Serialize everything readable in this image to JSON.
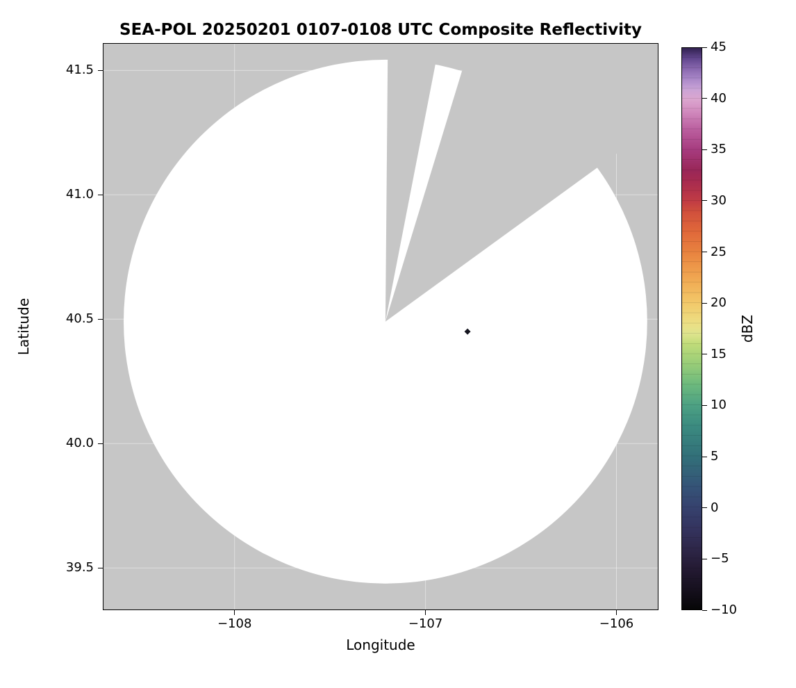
{
  "chart_data": {
    "type": "heatmap",
    "subtype": "radar-composite-reflectivity-map",
    "title": "SEA-POL 20250201 0107-0108 UTC Composite Reflectivity",
    "xlabel": "Longitude",
    "ylabel": "Latitude",
    "xlim": [
      -108.69,
      -105.78
    ],
    "ylim": [
      39.33,
      41.61
    ],
    "x_ticks": [
      {
        "value": -108,
        "label": "−108"
      },
      {
        "value": -107,
        "label": "−107"
      },
      {
        "value": -106,
        "label": "−106"
      }
    ],
    "y_ticks": [
      {
        "value": 39.5,
        "label": "39.5"
      },
      {
        "value": 40.0,
        "label": "40.0"
      },
      {
        "value": 40.5,
        "label": "40.5"
      },
      {
        "value": 41.0,
        "label": "41.0"
      },
      {
        "value": 41.5,
        "label": "41.5"
      }
    ],
    "grid": {
      "visible": true,
      "color": "#ffffff",
      "opacity": 0.45
    },
    "nodata_color": "#c6c6c6",
    "coverage_color": "#ffffff",
    "radar_coverage": {
      "center_lon": -107.21,
      "center_lat": 40.49,
      "radius_deg_lat": 1.053,
      "missing_sectors_azimuth_deg": [
        {
          "start": 0.5,
          "end": 11
        },
        {
          "start": 17,
          "end": 54
        }
      ]
    },
    "echoes": [
      {
        "lon": -106.78,
        "lat": 40.45,
        "shape": "diamond",
        "color": "#15151f"
      }
    ],
    "colorbar": {
      "label": "dBZ",
      "vmin": -10,
      "vmax": 45,
      "ticks": [
        {
          "value": 45,
          "label": "45"
        },
        {
          "value": 40,
          "label": "40"
        },
        {
          "value": 35,
          "label": "35"
        },
        {
          "value": 30,
          "label": "30"
        },
        {
          "value": 25,
          "label": "25"
        },
        {
          "value": 20,
          "label": "20"
        },
        {
          "value": 15,
          "label": "15"
        },
        {
          "value": 10,
          "label": "10"
        },
        {
          "value": 5,
          "label": "5"
        },
        {
          "value": 0,
          "label": "0"
        },
        {
          "value": -5,
          "label": "−5"
        },
        {
          "value": -10,
          "label": "−10"
        }
      ],
      "stops": [
        {
          "value": -10,
          "color": "#060607"
        },
        {
          "value": -8,
          "color": "#16101e"
        },
        {
          "value": -6,
          "color": "#241a33"
        },
        {
          "value": -4,
          "color": "#2e2749"
        },
        {
          "value": -2,
          "color": "#34345f"
        },
        {
          "value": 0,
          "color": "#36426e"
        },
        {
          "value": 2,
          "color": "#355377"
        },
        {
          "value": 5,
          "color": "#327079"
        },
        {
          "value": 8,
          "color": "#3b8b80"
        },
        {
          "value": 10,
          "color": "#4da183"
        },
        {
          "value": 12,
          "color": "#6cb97d"
        },
        {
          "value": 14,
          "color": "#97cc78"
        },
        {
          "value": 16,
          "color": "#c0dc79"
        },
        {
          "value": 17,
          "color": "#dfe48e"
        },
        {
          "value": 18,
          "color": "#ecdf84"
        },
        {
          "value": 20,
          "color": "#f2c96a"
        },
        {
          "value": 22,
          "color": "#f1ad55"
        },
        {
          "value": 24,
          "color": "#ec9146"
        },
        {
          "value": 25,
          "color": "#e8823f"
        },
        {
          "value": 27,
          "color": "#e0683a"
        },
        {
          "value": 29,
          "color": "#d04f3c"
        },
        {
          "value": 30,
          "color": "#c13c44"
        },
        {
          "value": 32,
          "color": "#a62a50"
        },
        {
          "value": 33,
          "color": "#992758"
        },
        {
          "value": 35,
          "color": "#a63b7e"
        },
        {
          "value": 37,
          "color": "#bb5f9f"
        },
        {
          "value": 39,
          "color": "#d490c2"
        },
        {
          "value": 40,
          "color": "#dba6cf"
        },
        {
          "value": 41,
          "color": "#c9a3d6"
        },
        {
          "value": 42,
          "color": "#a987c8"
        },
        {
          "value": 43,
          "color": "#8766ad"
        },
        {
          "value": 44,
          "color": "#60458c"
        },
        {
          "value": 45,
          "color": "#31214f"
        }
      ]
    }
  }
}
